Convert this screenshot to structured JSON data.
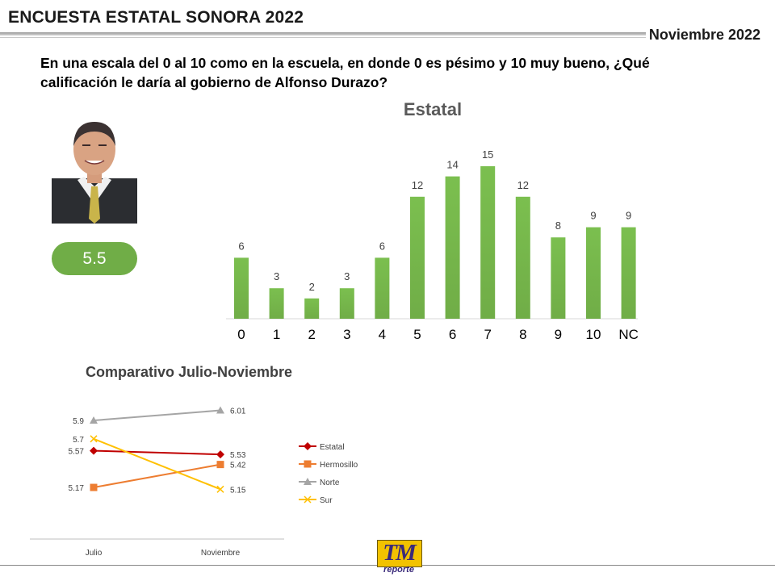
{
  "header": {
    "title": "ENCUESTA ESTATAL SONORA 2022",
    "date": "Noviembre 2022"
  },
  "question": "En una escala del 0 al 10 como en la escuela, en donde 0 es pésimo y 10 muy bueno, ¿Qué calificación le daría al gobierno de Alfonso Durazo?",
  "score": {
    "value": "5.5",
    "color": "#70ad47"
  },
  "logo": {
    "letters": "TM",
    "sub": "reporte"
  },
  "chart_data": [
    {
      "type": "bar",
      "title": "Estatal",
      "categories": [
        "0",
        "1",
        "2",
        "3",
        "4",
        "5",
        "6",
        "7",
        "8",
        "9",
        "10",
        "NC"
      ],
      "values": [
        6,
        3,
        2,
        3,
        6,
        12,
        14,
        15,
        12,
        8,
        9,
        9
      ],
      "ylim": [
        0,
        16
      ],
      "grid": false,
      "legend": "none",
      "bar_color": "#70ad47",
      "data_labels": true
    },
    {
      "type": "line",
      "title": "Comparativo Julio-Noviembre",
      "x": [
        "Julio",
        "Noviembre"
      ],
      "ylim": [
        5.1,
        6.05
      ],
      "legend": "right",
      "grid": false,
      "series": [
        {
          "name": "Estatal",
          "values": [
            5.57,
            5.53
          ],
          "labels": [
            "5.57",
            "5.53"
          ],
          "color": "#c00000",
          "marker": "diamond"
        },
        {
          "name": "Hermosillo",
          "values": [
            5.17,
            5.42
          ],
          "labels": [
            "5.17",
            "5.42"
          ],
          "color": "#ed7d31",
          "marker": "square"
        },
        {
          "name": "Norte",
          "values": [
            5.9,
            6.01
          ],
          "labels": [
            "5.9",
            "6.01"
          ],
          "color": "#a5a5a5",
          "marker": "triangle"
        },
        {
          "name": "Sur",
          "values": [
            5.7,
            5.15
          ],
          "labels": [
            "5.7",
            "5.15"
          ],
          "color": "#ffc000",
          "marker": "x"
        }
      ]
    }
  ]
}
